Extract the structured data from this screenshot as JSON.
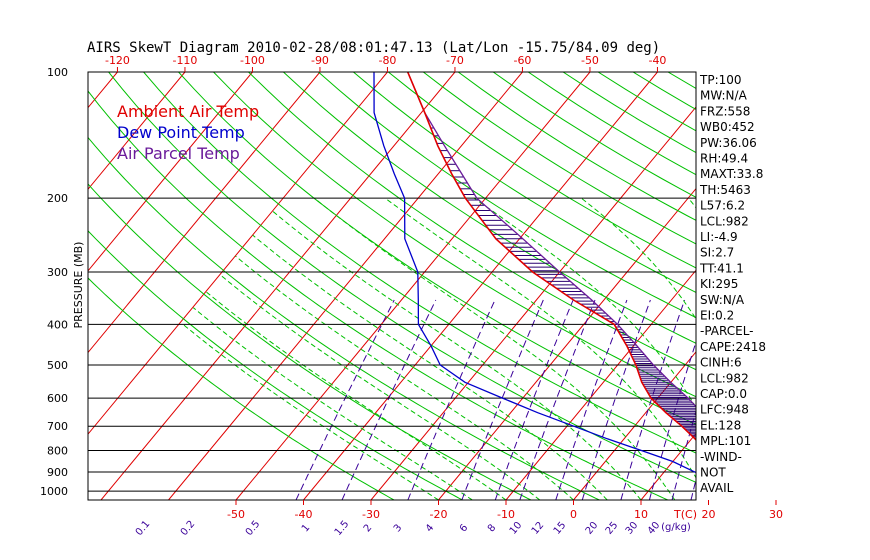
{
  "chart_data": {
    "type": "skewt",
    "title": "AIRS SkewT Diagram 2010-02-28/08:01:47.13 (Lat/Lon -15.75/84.09 deg)",
    "ylabel": "PRESSURE (MB)",
    "x_unit_label": "T(C)",
    "mixing_unit_label": "(g/kg)",
    "pressure_levels": [
      "100",
      "200",
      "300",
      "400",
      "500",
      "600",
      "700",
      "800",
      "900",
      "1000"
    ],
    "top_ticks": [
      "-120",
      "-110",
      "-100",
      "-90",
      "-80",
      "-70",
      "-60",
      "-50",
      "-40"
    ],
    "bottom_ticks": [
      "-50",
      "-40",
      "-30",
      "-20",
      "-10",
      "0",
      "10",
      "20",
      "30"
    ],
    "mixing_ratio_labels": [
      "0.1",
      "0.2",
      "0.5",
      "1",
      "1.5",
      "2",
      "3",
      "4",
      "6",
      "8",
      "10",
      "12",
      "15",
      "20",
      "25",
      "30",
      "40"
    ],
    "legend": [
      {
        "name": "Ambient Air Temp",
        "color": "#e00000"
      },
      {
        "name": "Dew Point Temp",
        "color": "#0000cc"
      },
      {
        "name": "Air Parcel Temp",
        "color": "#6a1b9a"
      }
    ],
    "colors": {
      "isotherm": "#e00000",
      "dry_adiabat": "#00c000",
      "moist_adiabat": "#00c000",
      "mixing_ratio": "#3a0099",
      "isobar": "#000000",
      "cape_hatch": "#2a0070"
    },
    "ambient_temp_profile": [
      [
        1000,
        26
      ],
      [
        950,
        23.5
      ],
      [
        900,
        20.5
      ],
      [
        850,
        17.8
      ],
      [
        800,
        13.5
      ],
      [
        750,
        10.5
      ],
      [
        700,
        7
      ],
      [
        650,
        3
      ],
      [
        600,
        -1
      ],
      [
        550,
        -4.3
      ],
      [
        500,
        -7.3
      ],
      [
        450,
        -11
      ],
      [
        400,
        -15.5
      ],
      [
        350,
        -24.5
      ],
      [
        300,
        -34
      ],
      [
        250,
        -43.5
      ],
      [
        200,
        -53
      ],
      [
        175,
        -58
      ],
      [
        150,
        -63.5
      ],
      [
        125,
        -69.5
      ],
      [
        100,
        -77
      ]
    ],
    "dewpoint_profile": [
      [
        1000,
        22.6
      ],
      [
        950,
        19.5
      ],
      [
        900,
        14.5
      ],
      [
        850,
        10
      ],
      [
        800,
        4
      ],
      [
        750,
        -2.5
      ],
      [
        700,
        -9
      ],
      [
        650,
        -16
      ],
      [
        600,
        -23
      ],
      [
        550,
        -30.5
      ],
      [
        500,
        -36.3
      ],
      [
        450,
        -40
      ],
      [
        400,
        -44.5
      ],
      [
        350,
        -47.5
      ],
      [
        300,
        -51
      ],
      [
        250,
        -57
      ],
      [
        200,
        -62
      ],
      [
        175,
        -66.5
      ],
      [
        150,
        -71.5
      ],
      [
        125,
        -77
      ],
      [
        100,
        -82
      ]
    ],
    "parcel_profile": [
      [
        1000,
        27
      ],
      [
        950,
        24.5
      ],
      [
        900,
        22.2
      ],
      [
        850,
        19.8
      ],
      [
        800,
        17.2
      ],
      [
        750,
        14.5
      ],
      [
        700,
        11.5
      ],
      [
        650,
        8.3
      ],
      [
        600,
        4.5
      ],
      [
        550,
        0
      ],
      [
        500,
        -4.7
      ],
      [
        450,
        -9.5
      ],
      [
        400,
        -15
      ],
      [
        350,
        -21.8
      ],
      [
        300,
        -30
      ],
      [
        250,
        -39.5
      ],
      [
        200,
        -51.3
      ],
      [
        175,
        -56.5
      ],
      [
        150,
        -62.5
      ],
      [
        125,
        -69.5
      ],
      [
        100,
        -77
      ]
    ],
    "indices": [
      "TP:100",
      "MW:N/A",
      "FRZ:558",
      "WB0:452",
      "PW:36.06",
      "RH:49.4",
      "MAXT:33.8",
      "TH:5463",
      "L57:6.2",
      "LCL:982",
      "LI:-4.9",
      "SI:2.7",
      "TT:41.1",
      "KI:295",
      "SW:N/A",
      "EI:0.2",
      "-PARCEL-",
      "CAPE:2418",
      "CINH:6",
      "LCL:982",
      "CAP:0.0",
      "LFC:948",
      "EL:128",
      "MPL:101",
      "-WIND-",
      "NOT",
      "AVAIL"
    ]
  }
}
